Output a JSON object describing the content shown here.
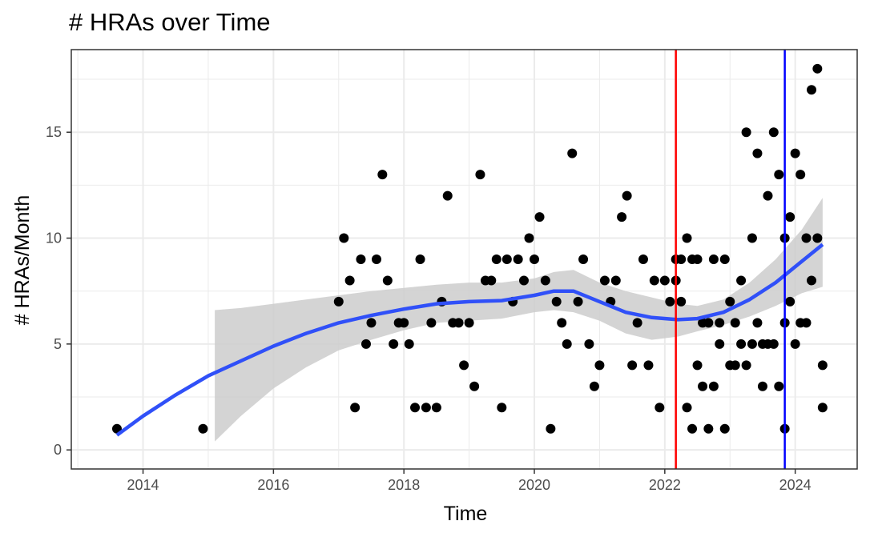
{
  "chart_data": {
    "type": "scatter",
    "title": "# HRAs over Time",
    "xlabel": "Time",
    "ylabel": "# HRAs/Month",
    "x_ticks": [
      2014,
      2016,
      2018,
      2020,
      2022,
      2024
    ],
    "y_ticks": [
      0,
      5,
      10,
      15
    ],
    "xlim": [
      2012.9,
      2024.95
    ],
    "ylim": [
      -0.9,
      18.9
    ],
    "grid": true,
    "colors": {
      "points": "#000000",
      "smooth_line": "#3050f8",
      "ribbon": "#cccccc",
      "vline_1": "#ff0000",
      "vline_2": "#0000ff",
      "grid": "#ebebeb",
      "panel_border": "#333333"
    },
    "vlines": [
      2022.17,
      2023.84
    ],
    "points": [
      {
        "x": 2013.6,
        "y": 1
      },
      {
        "x": 2014.92,
        "y": 1
      },
      {
        "x": 2017.0,
        "y": 7
      },
      {
        "x": 2017.08,
        "y": 10
      },
      {
        "x": 2017.17,
        "y": 8
      },
      {
        "x": 2017.25,
        "y": 2
      },
      {
        "x": 2017.34,
        "y": 9
      },
      {
        "x": 2017.42,
        "y": 5
      },
      {
        "x": 2017.5,
        "y": 6
      },
      {
        "x": 2017.58,
        "y": 9
      },
      {
        "x": 2017.67,
        "y": 13
      },
      {
        "x": 2017.75,
        "y": 8
      },
      {
        "x": 2017.84,
        "y": 5
      },
      {
        "x": 2017.92,
        "y": 6
      },
      {
        "x": 2018.0,
        "y": 6
      },
      {
        "x": 2018.08,
        "y": 5
      },
      {
        "x": 2018.17,
        "y": 2
      },
      {
        "x": 2018.25,
        "y": 9
      },
      {
        "x": 2018.34,
        "y": 2
      },
      {
        "x": 2018.42,
        "y": 6
      },
      {
        "x": 2018.5,
        "y": 2
      },
      {
        "x": 2018.58,
        "y": 7
      },
      {
        "x": 2018.67,
        "y": 12
      },
      {
        "x": 2018.75,
        "y": 6
      },
      {
        "x": 2018.84,
        "y": 6
      },
      {
        "x": 2018.92,
        "y": 4
      },
      {
        "x": 2019.0,
        "y": 6
      },
      {
        "x": 2019.08,
        "y": 3
      },
      {
        "x": 2019.17,
        "y": 13
      },
      {
        "x": 2019.25,
        "y": 8
      },
      {
        "x": 2019.34,
        "y": 8
      },
      {
        "x": 2019.42,
        "y": 9
      },
      {
        "x": 2019.5,
        "y": 2
      },
      {
        "x": 2019.58,
        "y": 9
      },
      {
        "x": 2019.67,
        "y": 7
      },
      {
        "x": 2019.75,
        "y": 9
      },
      {
        "x": 2019.84,
        "y": 8
      },
      {
        "x": 2019.92,
        "y": 10
      },
      {
        "x": 2020.0,
        "y": 9
      },
      {
        "x": 2020.08,
        "y": 11
      },
      {
        "x": 2020.17,
        "y": 8
      },
      {
        "x": 2020.25,
        "y": 1
      },
      {
        "x": 2020.34,
        "y": 7
      },
      {
        "x": 2020.42,
        "y": 6
      },
      {
        "x": 2020.5,
        "y": 5
      },
      {
        "x": 2020.58,
        "y": 14
      },
      {
        "x": 2020.67,
        "y": 7
      },
      {
        "x": 2020.75,
        "y": 9
      },
      {
        "x": 2020.84,
        "y": 5
      },
      {
        "x": 2020.92,
        "y": 3
      },
      {
        "x": 2021.0,
        "y": 4
      },
      {
        "x": 2021.08,
        "y": 8
      },
      {
        "x": 2021.17,
        "y": 7
      },
      {
        "x": 2021.25,
        "y": 8
      },
      {
        "x": 2021.34,
        "y": 11
      },
      {
        "x": 2021.42,
        "y": 12
      },
      {
        "x": 2021.5,
        "y": 4
      },
      {
        "x": 2021.58,
        "y": 6
      },
      {
        "x": 2021.67,
        "y": 9
      },
      {
        "x": 2021.75,
        "y": 4
      },
      {
        "x": 2021.84,
        "y": 8
      },
      {
        "x": 2021.92,
        "y": 2
      },
      {
        "x": 2022.0,
        "y": 8
      },
      {
        "x": 2022.08,
        "y": 7
      },
      {
        "x": 2022.17,
        "y": 9
      },
      {
        "x": 2022.17,
        "y": 8
      },
      {
        "x": 2022.25,
        "y": 9
      },
      {
        "x": 2022.25,
        "y": 7
      },
      {
        "x": 2022.34,
        "y": 10
      },
      {
        "x": 2022.34,
        "y": 2
      },
      {
        "x": 2022.42,
        "y": 9
      },
      {
        "x": 2022.42,
        "y": 1
      },
      {
        "x": 2022.5,
        "y": 9
      },
      {
        "x": 2022.5,
        "y": 4
      },
      {
        "x": 2022.58,
        "y": 6
      },
      {
        "x": 2022.58,
        "y": 3
      },
      {
        "x": 2022.67,
        "y": 6
      },
      {
        "x": 2022.67,
        "y": 1
      },
      {
        "x": 2022.75,
        "y": 9
      },
      {
        "x": 2022.75,
        "y": 3
      },
      {
        "x": 2022.84,
        "y": 6
      },
      {
        "x": 2022.84,
        "y": 5
      },
      {
        "x": 2022.92,
        "y": 9
      },
      {
        "x": 2022.92,
        "y": 1
      },
      {
        "x": 2023.0,
        "y": 7
      },
      {
        "x": 2023.0,
        "y": 4
      },
      {
        "x": 2023.08,
        "y": 6
      },
      {
        "x": 2023.08,
        "y": 4
      },
      {
        "x": 2023.17,
        "y": 8
      },
      {
        "x": 2023.17,
        "y": 5
      },
      {
        "x": 2023.25,
        "y": 15
      },
      {
        "x": 2023.25,
        "y": 4
      },
      {
        "x": 2023.34,
        "y": 10
      },
      {
        "x": 2023.34,
        "y": 5
      },
      {
        "x": 2023.42,
        "y": 14
      },
      {
        "x": 2023.42,
        "y": 6
      },
      {
        "x": 2023.5,
        "y": 5
      },
      {
        "x": 2023.5,
        "y": 3
      },
      {
        "x": 2023.58,
        "y": 12
      },
      {
        "x": 2023.58,
        "y": 5
      },
      {
        "x": 2023.67,
        "y": 15
      },
      {
        "x": 2023.67,
        "y": 5
      },
      {
        "x": 2023.75,
        "y": 13
      },
      {
        "x": 2023.75,
        "y": 3
      },
      {
        "x": 2023.84,
        "y": 10
      },
      {
        "x": 2023.84,
        "y": 6
      },
      {
        "x": 2023.84,
        "y": 1
      },
      {
        "x": 2023.92,
        "y": 11
      },
      {
        "x": 2023.92,
        "y": 7
      },
      {
        "x": 2024.0,
        "y": 14
      },
      {
        "x": 2024.0,
        "y": 5
      },
      {
        "x": 2024.08,
        "y": 13
      },
      {
        "x": 2024.08,
        "y": 6
      },
      {
        "x": 2024.17,
        "y": 10
      },
      {
        "x": 2024.17,
        "y": 6
      },
      {
        "x": 2024.25,
        "y": 17
      },
      {
        "x": 2024.25,
        "y": 8
      },
      {
        "x": 2024.34,
        "y": 18
      },
      {
        "x": 2024.34,
        "y": 10
      },
      {
        "x": 2024.42,
        "y": 4
      },
      {
        "x": 2024.42,
        "y": 2
      }
    ],
    "smooth": [
      {
        "x": 2013.6,
        "y": 0.7
      },
      {
        "x": 2014.0,
        "y": 1.6
      },
      {
        "x": 2014.5,
        "y": 2.6
      },
      {
        "x": 2015.0,
        "y": 3.5
      },
      {
        "x": 2015.5,
        "y": 4.2
      },
      {
        "x": 2016.0,
        "y": 4.9
      },
      {
        "x": 2016.5,
        "y": 5.5
      },
      {
        "x": 2017.0,
        "y": 6.0
      },
      {
        "x": 2017.5,
        "y": 6.35
      },
      {
        "x": 2018.0,
        "y": 6.65
      },
      {
        "x": 2018.5,
        "y": 6.9
      },
      {
        "x": 2019.0,
        "y": 7.0
      },
      {
        "x": 2019.5,
        "y": 7.05
      },
      {
        "x": 2020.0,
        "y": 7.3
      },
      {
        "x": 2020.3,
        "y": 7.5
      },
      {
        "x": 2020.6,
        "y": 7.5
      },
      {
        "x": 2021.0,
        "y": 7.0
      },
      {
        "x": 2021.4,
        "y": 6.5
      },
      {
        "x": 2021.8,
        "y": 6.25
      },
      {
        "x": 2022.2,
        "y": 6.15
      },
      {
        "x": 2022.5,
        "y": 6.2
      },
      {
        "x": 2022.9,
        "y": 6.5
      },
      {
        "x": 2023.3,
        "y": 7.1
      },
      {
        "x": 2023.7,
        "y": 7.9
      },
      {
        "x": 2024.1,
        "y": 8.9
      },
      {
        "x": 2024.42,
        "y": 9.7
      }
    ],
    "ribbon_upper": [
      {
        "x": 2015.1,
        "y": 6.6
      },
      {
        "x": 2015.5,
        "y": 6.7
      },
      {
        "x": 2016.0,
        "y": 6.9
      },
      {
        "x": 2016.5,
        "y": 7.1
      },
      {
        "x": 2017.0,
        "y": 7.3
      },
      {
        "x": 2017.5,
        "y": 7.5
      },
      {
        "x": 2018.0,
        "y": 7.65
      },
      {
        "x": 2018.5,
        "y": 7.8
      },
      {
        "x": 2019.0,
        "y": 7.9
      },
      {
        "x": 2019.5,
        "y": 7.9
      },
      {
        "x": 2020.0,
        "y": 8.1
      },
      {
        "x": 2020.3,
        "y": 8.4
      },
      {
        "x": 2020.6,
        "y": 8.5
      },
      {
        "x": 2021.0,
        "y": 7.9
      },
      {
        "x": 2021.4,
        "y": 7.5
      },
      {
        "x": 2021.8,
        "y": 7.2
      },
      {
        "x": 2022.2,
        "y": 6.9
      },
      {
        "x": 2022.5,
        "y": 6.8
      },
      {
        "x": 2022.9,
        "y": 7.1
      },
      {
        "x": 2023.3,
        "y": 7.9
      },
      {
        "x": 2023.7,
        "y": 9.0
      },
      {
        "x": 2024.1,
        "y": 10.4
      },
      {
        "x": 2024.42,
        "y": 11.9
      }
    ],
    "ribbon_lower": [
      {
        "x": 2015.1,
        "y": 0.4
      },
      {
        "x": 2015.5,
        "y": 1.6
      },
      {
        "x": 2016.0,
        "y": 2.9
      },
      {
        "x": 2016.5,
        "y": 3.9
      },
      {
        "x": 2017.0,
        "y": 4.7
      },
      {
        "x": 2017.5,
        "y": 5.2
      },
      {
        "x": 2018.0,
        "y": 5.65
      },
      {
        "x": 2018.5,
        "y": 6.0
      },
      {
        "x": 2019.0,
        "y": 6.1
      },
      {
        "x": 2019.5,
        "y": 6.2
      },
      {
        "x": 2020.0,
        "y": 6.5
      },
      {
        "x": 2020.3,
        "y": 6.6
      },
      {
        "x": 2020.6,
        "y": 6.5
      },
      {
        "x": 2021.0,
        "y": 6.1
      },
      {
        "x": 2021.4,
        "y": 5.5
      },
      {
        "x": 2021.8,
        "y": 5.2
      },
      {
        "x": 2022.2,
        "y": 5.35
      },
      {
        "x": 2022.5,
        "y": 5.6
      },
      {
        "x": 2022.9,
        "y": 5.9
      },
      {
        "x": 2023.3,
        "y": 6.3
      },
      {
        "x": 2023.7,
        "y": 6.8
      },
      {
        "x": 2024.1,
        "y": 7.4
      },
      {
        "x": 2024.42,
        "y": 7.7
      }
    ]
  }
}
